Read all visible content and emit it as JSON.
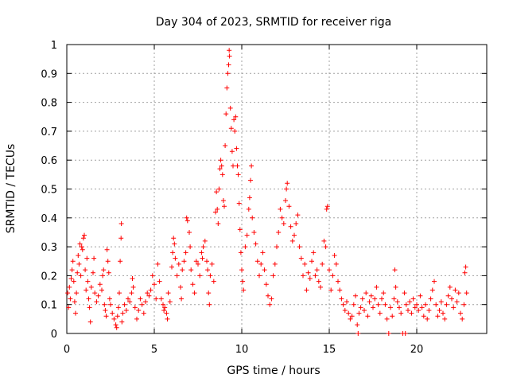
{
  "chart_data": {
    "type": "scatter",
    "title": "Day 304 of 2023, SRMTID for receiver riga",
    "xlabel": "GPS time / hours",
    "ylabel": "SRMTID / TECUs",
    "xlim": [
      0,
      24
    ],
    "ylim": [
      0,
      1
    ],
    "xticks": [
      0,
      5,
      10,
      15,
      20
    ],
    "xtick_labels": [
      "0",
      "5",
      "10",
      "15",
      "20"
    ],
    "yticks": [
      0,
      0.1,
      0.2,
      0.3,
      0.4,
      0.5,
      0.6,
      0.7,
      0.8,
      0.9,
      1
    ],
    "ytick_labels": [
      "0",
      "0.1",
      "0.2",
      "0.3",
      "0.4",
      "0.5",
      "0.6",
      "0.7",
      "0.8",
      "0.9",
      "1"
    ],
    "grid": true,
    "marker": "+",
    "marker_color": "#ff0000",
    "series": [
      {
        "name": "SRMTID",
        "points": [
          [
            0.05,
            0.14
          ],
          [
            0.1,
            0.09
          ],
          [
            0.15,
            0.16
          ],
          [
            0.2,
            0.12
          ],
          [
            0.25,
            0.19
          ],
          [
            0.3,
            0.22
          ],
          [
            0.35,
            0.25
          ],
          [
            0.4,
            0.18
          ],
          [
            0.45,
            0.11
          ],
          [
            0.5,
            0.07
          ],
          [
            0.55,
            0.14
          ],
          [
            0.6,
            0.21
          ],
          [
            0.65,
            0.27
          ],
          [
            0.7,
            0.24
          ],
          [
            0.75,
            0.31
          ],
          [
            0.8,
            0.2
          ],
          [
            0.85,
            0.3
          ],
          [
            0.9,
            0.29
          ],
          [
            0.95,
            0.33
          ],
          [
            1.0,
            0.34
          ],
          [
            1.05,
            0.22
          ],
          [
            1.1,
            0.15
          ],
          [
            1.15,
            0.26
          ],
          [
            1.2,
            0.18
          ],
          [
            1.25,
            0.12
          ],
          [
            1.3,
            0.09
          ],
          [
            1.35,
            0.04
          ],
          [
            1.4,
            0.16
          ],
          [
            1.5,
            0.21
          ],
          [
            1.55,
            0.26
          ],
          [
            1.6,
            0.14
          ],
          [
            1.7,
            0.11
          ],
          [
            1.8,
            0.13
          ],
          [
            1.9,
            0.17
          ],
          [
            2.0,
            0.15
          ],
          [
            2.05,
            0.2
          ],
          [
            2.1,
            0.22
          ],
          [
            2.15,
            0.1
          ],
          [
            2.2,
            0.08
          ],
          [
            2.25,
            0.06
          ],
          [
            2.3,
            0.29
          ],
          [
            2.35,
            0.25
          ],
          [
            2.4,
            0.21
          ],
          [
            2.45,
            0.12
          ],
          [
            2.5,
            0.1
          ],
          [
            2.6,
            0.07
          ],
          [
            2.7,
            0.05
          ],
          [
            2.8,
            0.03
          ],
          [
            2.85,
            0.02
          ],
          [
            2.9,
            0.06
          ],
          [
            2.95,
            0.09
          ],
          [
            3.0,
            0.14
          ],
          [
            3.05,
            0.25
          ],
          [
            3.1,
            0.33
          ],
          [
            3.12,
            0.38
          ],
          [
            3.15,
            0.04
          ],
          [
            3.2,
            0.07
          ],
          [
            3.3,
            0.1
          ],
          [
            3.4,
            0.08
          ],
          [
            3.5,
            0.12
          ],
          [
            3.6,
            0.11
          ],
          [
            3.7,
            0.14
          ],
          [
            3.75,
            0.19
          ],
          [
            3.8,
            0.16
          ],
          [
            3.9,
            0.09
          ],
          [
            4.0,
            0.05
          ],
          [
            4.1,
            0.08
          ],
          [
            4.2,
            0.12
          ],
          [
            4.3,
            0.1
          ],
          [
            4.4,
            0.07
          ],
          [
            4.5,
            0.11
          ],
          [
            4.6,
            0.14
          ],
          [
            4.7,
            0.13
          ],
          [
            4.8,
            0.15
          ],
          [
            4.9,
            0.2
          ],
          [
            5.0,
            0.17
          ],
          [
            5.1,
            0.12
          ],
          [
            5.2,
            0.24
          ],
          [
            5.3,
            0.18
          ],
          [
            5.4,
            0.12
          ],
          [
            5.5,
            0.1
          ],
          [
            5.55,
            0.08
          ],
          [
            5.6,
            0.09
          ],
          [
            5.7,
            0.07
          ],
          [
            5.75,
            0.05
          ],
          [
            5.8,
            0.14
          ],
          [
            5.9,
            0.11
          ],
          [
            6.0,
            0.23
          ],
          [
            6.05,
            0.28
          ],
          [
            6.1,
            0.33
          ],
          [
            6.15,
            0.31
          ],
          [
            6.2,
            0.26
          ],
          [
            6.3,
            0.2
          ],
          [
            6.4,
            0.24
          ],
          [
            6.5,
            0.16
          ],
          [
            6.55,
            0.12
          ],
          [
            6.6,
            0.22
          ],
          [
            6.7,
            0.25
          ],
          [
            6.8,
            0.28
          ],
          [
            6.85,
            0.4
          ],
          [
            6.9,
            0.39
          ],
          [
            7.0,
            0.35
          ],
          [
            7.05,
            0.3
          ],
          [
            7.1,
            0.22
          ],
          [
            7.2,
            0.17
          ],
          [
            7.3,
            0.14
          ],
          [
            7.4,
            0.25
          ],
          [
            7.5,
            0.24
          ],
          [
            7.6,
            0.2
          ],
          [
            7.7,
            0.28
          ],
          [
            7.75,
            0.26
          ],
          [
            7.8,
            0.3
          ],
          [
            7.9,
            0.32
          ],
          [
            8.0,
            0.25
          ],
          [
            8.05,
            0.22
          ],
          [
            8.1,
            0.14
          ],
          [
            8.15,
            0.1
          ],
          [
            8.2,
            0.2
          ],
          [
            8.3,
            0.24
          ],
          [
            8.4,
            0.18
          ],
          [
            8.5,
            0.42
          ],
          [
            8.55,
            0.49
          ],
          [
            8.6,
            0.43
          ],
          [
            8.65,
            0.38
          ],
          [
            8.7,
            0.5
          ],
          [
            8.75,
            0.57
          ],
          [
            8.8,
            0.6
          ],
          [
            8.85,
            0.58
          ],
          [
            8.9,
            0.55
          ],
          [
            8.95,
            0.46
          ],
          [
            9.0,
            0.44
          ],
          [
            9.05,
            0.65
          ],
          [
            9.1,
            0.76
          ],
          [
            9.15,
            0.85
          ],
          [
            9.2,
            0.9
          ],
          [
            9.25,
            0.93
          ],
          [
            9.28,
            0.98
          ],
          [
            9.3,
            0.96
          ],
          [
            9.35,
            0.78
          ],
          [
            9.4,
            0.71
          ],
          [
            9.45,
            0.63
          ],
          [
            9.5,
            0.58
          ],
          [
            9.55,
            0.74
          ],
          [
            9.6,
            0.7
          ],
          [
            9.65,
            0.75
          ],
          [
            9.7,
            0.64
          ],
          [
            9.75,
            0.58
          ],
          [
            9.8,
            0.55
          ],
          [
            9.85,
            0.45
          ],
          [
            9.9,
            0.36
          ],
          [
            9.95,
            0.28
          ],
          [
            10.0,
            0.22
          ],
          [
            10.05,
            0.18
          ],
          [
            10.1,
            0.15
          ],
          [
            10.2,
            0.3
          ],
          [
            10.3,
            0.34
          ],
          [
            10.4,
            0.43
          ],
          [
            10.45,
            0.47
          ],
          [
            10.5,
            0.53
          ],
          [
            10.55,
            0.58
          ],
          [
            10.6,
            0.4
          ],
          [
            10.7,
            0.35
          ],
          [
            10.8,
            0.31
          ],
          [
            10.9,
            0.25
          ],
          [
            11.0,
            0.2
          ],
          [
            11.1,
            0.24
          ],
          [
            11.2,
            0.28
          ],
          [
            11.3,
            0.22
          ],
          [
            11.4,
            0.17
          ],
          [
            11.5,
            0.13
          ],
          [
            11.6,
            0.1
          ],
          [
            11.7,
            0.12
          ],
          [
            11.8,
            0.2
          ],
          [
            11.9,
            0.24
          ],
          [
            12.0,
            0.3
          ],
          [
            12.1,
            0.35
          ],
          [
            12.2,
            0.43
          ],
          [
            12.3,
            0.4
          ],
          [
            12.4,
            0.38
          ],
          [
            12.5,
            0.46
          ],
          [
            12.55,
            0.5
          ],
          [
            12.6,
            0.52
          ],
          [
            12.7,
            0.44
          ],
          [
            12.8,
            0.37
          ],
          [
            12.9,
            0.32
          ],
          [
            13.0,
            0.34
          ],
          [
            13.1,
            0.38
          ],
          [
            13.2,
            0.41
          ],
          [
            13.3,
            0.3
          ],
          [
            13.4,
            0.26
          ],
          [
            13.5,
            0.2
          ],
          [
            13.6,
            0.24
          ],
          [
            13.7,
            0.15
          ],
          [
            13.8,
            0.21
          ],
          [
            13.9,
            0.19
          ],
          [
            14.0,
            0.25
          ],
          [
            14.1,
            0.28
          ],
          [
            14.2,
            0.2
          ],
          [
            14.3,
            0.22
          ],
          [
            14.4,
            0.18
          ],
          [
            14.5,
            0.16
          ],
          [
            14.6,
            0.24
          ],
          [
            14.7,
            0.32
          ],
          [
            14.8,
            0.3
          ],
          [
            14.85,
            0.43
          ],
          [
            14.9,
            0.44
          ],
          [
            15.0,
            0.22
          ],
          [
            15.1,
            0.15
          ],
          [
            15.2,
            0.2
          ],
          [
            15.3,
            0.27
          ],
          [
            15.4,
            0.24
          ],
          [
            15.5,
            0.18
          ],
          [
            15.6,
            0.15
          ],
          [
            15.7,
            0.12
          ],
          [
            15.8,
            0.1
          ],
          [
            15.9,
            0.08
          ],
          [
            16.0,
            0.11
          ],
          [
            16.1,
            0.07
          ],
          [
            16.2,
            0.05
          ],
          [
            16.3,
            0.06
          ],
          [
            16.4,
            0.1
          ],
          [
            16.5,
            0.13
          ],
          [
            16.6,
            0.03
          ],
          [
            16.65,
            0.0
          ],
          [
            16.7,
            0.07
          ],
          [
            16.8,
            0.09
          ],
          [
            16.9,
            0.12
          ],
          [
            17.0,
            0.08
          ],
          [
            17.1,
            0.14
          ],
          [
            17.2,
            0.06
          ],
          [
            17.3,
            0.11
          ],
          [
            17.4,
            0.13
          ],
          [
            17.5,
            0.09
          ],
          [
            17.6,
            0.12
          ],
          [
            17.7,
            0.16
          ],
          [
            17.8,
            0.1
          ],
          [
            17.9,
            0.07
          ],
          [
            18.0,
            0.12
          ],
          [
            18.1,
            0.14
          ],
          [
            18.2,
            0.1
          ],
          [
            18.3,
            0.05
          ],
          [
            18.4,
            0.0
          ],
          [
            18.5,
            0.09
          ],
          [
            18.6,
            0.06
          ],
          [
            18.7,
            0.12
          ],
          [
            18.75,
            0.22
          ],
          [
            18.8,
            0.16
          ],
          [
            18.9,
            0.11
          ],
          [
            19.0,
            0.09
          ],
          [
            19.1,
            0.07
          ],
          [
            19.2,
            0.0
          ],
          [
            19.3,
            0.14
          ],
          [
            19.35,
            0.0
          ],
          [
            19.4,
            0.1
          ],
          [
            19.5,
            0.08
          ],
          [
            19.6,
            0.11
          ],
          [
            19.7,
            0.07
          ],
          [
            19.8,
            0.12
          ],
          [
            19.9,
            0.09
          ],
          [
            20.0,
            0.1
          ],
          [
            20.1,
            0.08
          ],
          [
            20.2,
            0.13
          ],
          [
            20.3,
            0.09
          ],
          [
            20.4,
            0.06
          ],
          [
            20.5,
            0.1
          ],
          [
            20.6,
            0.05
          ],
          [
            20.7,
            0.08
          ],
          [
            20.8,
            0.12
          ],
          [
            20.9,
            0.15
          ],
          [
            21.0,
            0.18
          ],
          [
            21.1,
            0.1
          ],
          [
            21.2,
            0.06
          ],
          [
            21.3,
            0.08
          ],
          [
            21.4,
            0.11
          ],
          [
            21.5,
            0.07
          ],
          [
            21.6,
            0.05
          ],
          [
            21.7,
            0.1
          ],
          [
            21.8,
            0.13
          ],
          [
            21.9,
            0.16
          ],
          [
            22.0,
            0.12
          ],
          [
            22.1,
            0.09
          ],
          [
            22.2,
            0.15
          ],
          [
            22.3,
            0.11
          ],
          [
            22.4,
            0.14
          ],
          [
            22.5,
            0.07
          ],
          [
            22.6,
            0.05
          ],
          [
            22.7,
            0.1
          ],
          [
            22.75,
            0.21
          ],
          [
            22.8,
            0.23
          ],
          [
            22.85,
            0.14
          ]
        ]
      }
    ]
  }
}
